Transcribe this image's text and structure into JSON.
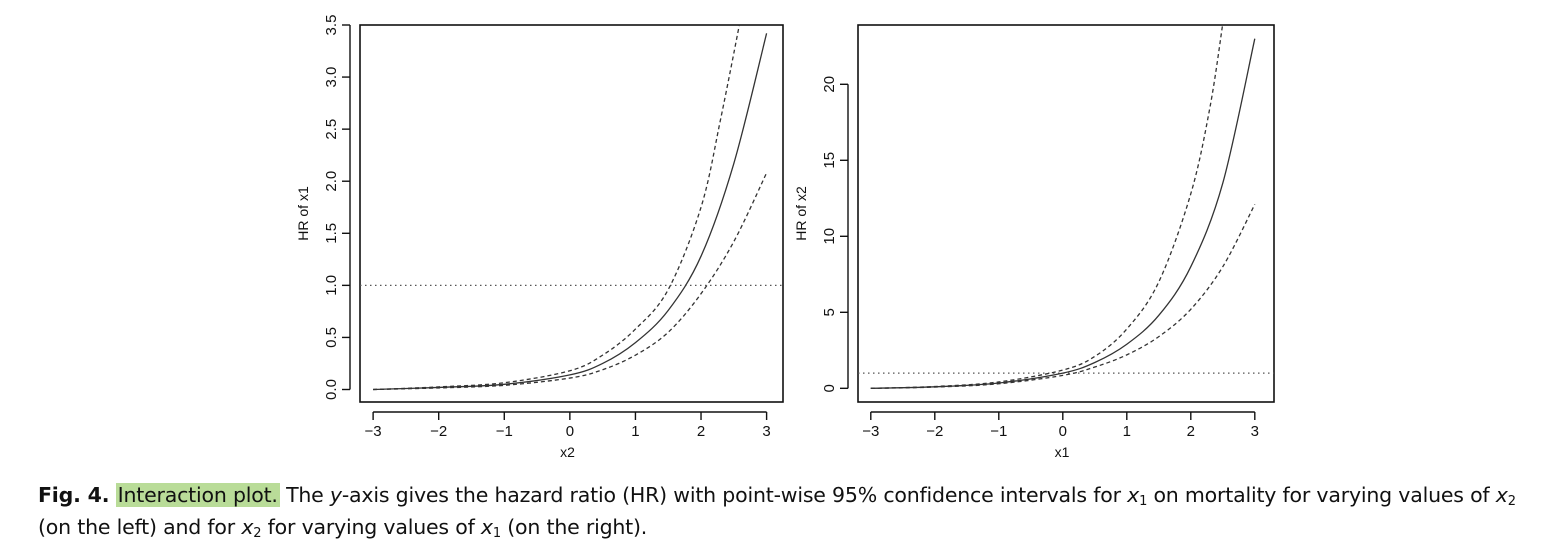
{
  "chart_data": [
    {
      "type": "line",
      "xlabel": "x2",
      "ylabel": "HR of x1",
      "xlim": [
        -3.2,
        3.25
      ],
      "ylim": [
        -0.12,
        3.5
      ],
      "xticks": [
        "-3",
        "-2",
        "-1",
        "0",
        "1",
        "2",
        "3"
      ],
      "xtick_values": [
        -3,
        -2,
        -1,
        0,
        1,
        2,
        3
      ],
      "yticks": [
        "0.0",
        "0.5",
        "1.0",
        "1.5",
        "2.0",
        "2.5",
        "3.0",
        "3.5"
      ],
      "ytick_values": [
        0,
        0.5,
        1.0,
        1.5,
        2.0,
        2.5,
        3.0,
        3.5
      ],
      "reference_line": 1.0,
      "series": [
        {
          "style": "solid",
          "x": [
            -3,
            -2,
            -1,
            0,
            0.5,
            1,
            1.5,
            2,
            2.5,
            3
          ],
          "y": [
            0.0,
            0.02,
            0.05,
            0.14,
            0.25,
            0.45,
            0.76,
            1.28,
            2.17,
            3.42
          ]
        },
        {
          "style": "dashed",
          "x": [
            -3,
            -2,
            -1,
            0,
            0.5,
            1,
            1.5,
            2,
            2.3,
            2.6
          ],
          "y": [
            0.0,
            0.025,
            0.065,
            0.18,
            0.33,
            0.58,
            0.96,
            1.75,
            2.6,
            3.55
          ]
        },
        {
          "style": "dashed",
          "x": [
            -3,
            -2,
            -1,
            0,
            0.5,
            1,
            1.5,
            2,
            2.5,
            3
          ],
          "y": [
            0.0,
            0.015,
            0.04,
            0.11,
            0.19,
            0.33,
            0.55,
            0.92,
            1.42,
            2.08
          ]
        }
      ]
    },
    {
      "type": "line",
      "xlabel": "x1",
      "ylabel": "HR of x2",
      "xlim": [
        -3.2,
        3.3
      ],
      "ylim": [
        -0.9,
        23.9
      ],
      "xticks": [
        "-3",
        "-2",
        "-1",
        "0",
        "1",
        "2",
        "3"
      ],
      "xtick_values": [
        -3,
        -2,
        -1,
        0,
        1,
        2,
        3
      ],
      "yticks": [
        "0",
        "5",
        "10",
        "15",
        "20"
      ],
      "ytick_values": [
        0,
        5,
        10,
        15,
        20
      ],
      "reference_line": 1.0,
      "series": [
        {
          "style": "solid",
          "x": [
            -3,
            -2,
            -1,
            0,
            0.5,
            1,
            1.5,
            2,
            2.5,
            3
          ],
          "y": [
            0.0,
            0.1,
            0.35,
            1.0,
            1.7,
            2.9,
            4.8,
            8.0,
            13.5,
            23.0
          ]
        },
        {
          "style": "dashed",
          "x": [
            -3,
            -2,
            -1,
            0,
            0.5,
            1,
            1.5,
            2,
            2.3,
            2.5
          ],
          "y": [
            0.0,
            0.12,
            0.42,
            1.2,
            2.1,
            3.9,
            7.0,
            12.8,
            18.5,
            24.0
          ]
        },
        {
          "style": "dashed",
          "x": [
            -3,
            -2,
            -1,
            0,
            0.5,
            1,
            1.5,
            2,
            2.5,
            3
          ],
          "y": [
            0.0,
            0.08,
            0.3,
            0.85,
            1.4,
            2.2,
            3.4,
            5.2,
            8.0,
            12.1
          ]
        }
      ]
    }
  ],
  "caption": {
    "fig_label": "Fig. 4.",
    "highlight": "Interaction plot.",
    "part1": " The ",
    "y_italic": "y",
    "part2": "-axis gives the hazard ratio (HR) with point-wise 95% confidence intervals for ",
    "var_a": "x",
    "sub_a": "1",
    "part3": " on mortality for varying values of ",
    "var_b": "x",
    "sub_b": "2",
    "part4": " (on the left) and for ",
    "var_c": "x",
    "sub_c": "2",
    "part5": " for varying values of ",
    "var_d": "x",
    "sub_d": "1",
    "part6": " (on the right)."
  },
  "colors": {
    "line": "#333333",
    "axis": "#111111",
    "highlight": "#b9dc98"
  }
}
